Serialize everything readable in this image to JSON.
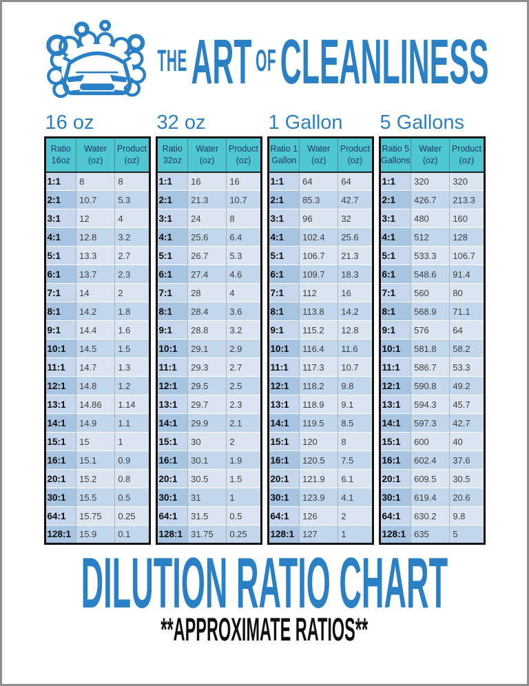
{
  "brand": {
    "word_the": "THE",
    "word_art": "ART",
    "word_of": "OF",
    "word_cleanliness": "CLEANLINESS",
    "logo": "car-wash-bubbles-logo"
  },
  "footer": {
    "title": "DILUTION RATIO CHART",
    "subtitle": "**APPROXIMATE RATIOS**"
  },
  "colors": {
    "brand_blue": "#2980C4",
    "header_teal": "#4FC7D2",
    "table_border": "#141414",
    "row_odd_ratio": "#C6D6EC",
    "row_odd_value": "#DBE5F2",
    "row_even_ratio": "#A7C4E3",
    "row_even_value": "#C2D6EC"
  },
  "tables": [
    {
      "section_label": "16 oz",
      "headers": [
        "Ratio\n16oz",
        "Water\n(oz)",
        "Product\n(oz)"
      ],
      "rows": [
        [
          "1:1",
          "8",
          "8"
        ],
        [
          "2:1",
          "10.7",
          "5.3"
        ],
        [
          "3:1",
          "12",
          "4"
        ],
        [
          "4:1",
          "12.8",
          "3.2"
        ],
        [
          "5:1",
          "13.3",
          "2.7"
        ],
        [
          "6:1",
          "13.7",
          "2.3"
        ],
        [
          "7:1",
          "14",
          "2"
        ],
        [
          "8:1",
          "14.2",
          "1.8"
        ],
        [
          "9:1",
          "14.4",
          "1.6"
        ],
        [
          "10:1",
          "14.5",
          "1.5"
        ],
        [
          "11:1",
          "14.7",
          "1.3"
        ],
        [
          "12:1",
          "14.8",
          "1.2"
        ],
        [
          "13:1",
          "14.86",
          "1.14"
        ],
        [
          "14:1",
          "14.9",
          "1.1"
        ],
        [
          "15:1",
          "15",
          "1"
        ],
        [
          "16:1",
          "15.1",
          "0.9"
        ],
        [
          "20:1",
          "15.2",
          "0.8"
        ],
        [
          "30:1",
          "15.5",
          "0.5"
        ],
        [
          "64:1",
          "15.75",
          "0.25"
        ],
        [
          "128:1",
          "15.9",
          "0.1"
        ]
      ]
    },
    {
      "section_label": "32 oz",
      "headers": [
        "Ratio\n32oz",
        "Water\n(oz)",
        "Product\n(oz)"
      ],
      "rows": [
        [
          "1:1",
          "16",
          "16"
        ],
        [
          "2:1",
          "21.3",
          "10.7"
        ],
        [
          "3:1",
          "24",
          "8"
        ],
        [
          "4:1",
          "25.6",
          "6.4"
        ],
        [
          "5:1",
          "26.7",
          "5.3"
        ],
        [
          "6:1",
          "27.4",
          "4.6"
        ],
        [
          "7:1",
          "28",
          "4"
        ],
        [
          "8:1",
          "28.4",
          "3.6"
        ],
        [
          "9:1",
          "28.8",
          "3.2"
        ],
        [
          "10:1",
          "29.1",
          "2.9"
        ],
        [
          "11:1",
          "29.3",
          "2.7"
        ],
        [
          "12:1",
          "29.5",
          "2.5"
        ],
        [
          "13:1",
          "29.7",
          "2.3"
        ],
        [
          "14:1",
          "29.9",
          "2.1"
        ],
        [
          "15:1",
          "30",
          "2"
        ],
        [
          "16:1",
          "30.1",
          "1.9"
        ],
        [
          "20:1",
          "30.5",
          "1.5"
        ],
        [
          "30:1",
          "31",
          "1"
        ],
        [
          "64:1",
          "31.5",
          "0.5"
        ],
        [
          "128:1",
          "31.75",
          "0.25"
        ]
      ]
    },
    {
      "section_label": "1 Gallon",
      "headers": [
        "Ratio 1\nGallon",
        "Water\n(oz)",
        "Product\n(oz)"
      ],
      "rows": [
        [
          "1:1",
          "64",
          "64"
        ],
        [
          "2:1",
          "85.3",
          "42.7"
        ],
        [
          "3:1",
          "96",
          "32"
        ],
        [
          "4:1",
          "102.4",
          "25.6"
        ],
        [
          "5:1",
          "106.7",
          "21.3"
        ],
        [
          "6:1",
          "109.7",
          "18.3"
        ],
        [
          "7:1",
          "112",
          "16"
        ],
        [
          "8:1",
          "113.8",
          "14.2"
        ],
        [
          "9:1",
          "115.2",
          "12.8"
        ],
        [
          "10:1",
          "116.4",
          "11.6"
        ],
        [
          "11:1",
          "117.3",
          "10.7"
        ],
        [
          "12:1",
          "118.2",
          "9.8"
        ],
        [
          "13:1",
          "118.9",
          "9.1"
        ],
        [
          "14:1",
          "119.5",
          "8.5"
        ],
        [
          "15:1",
          "120",
          "8"
        ],
        [
          "16:1",
          "120.5",
          "7.5"
        ],
        [
          "20:1",
          "121.9",
          "6.1"
        ],
        [
          "30:1",
          "123.9",
          "4.1"
        ],
        [
          "64:1",
          "126",
          "2"
        ],
        [
          "128:1",
          "127",
          "1"
        ]
      ]
    },
    {
      "section_label": "5 Gallons",
      "headers": [
        "Ratio 5\nGallons",
        "Water\n(oz)",
        "Product\n(oz)"
      ],
      "rows": [
        [
          "1:1",
          "320",
          "320"
        ],
        [
          "2:1",
          "426.7",
          "213.3"
        ],
        [
          "3:1",
          "480",
          "160"
        ],
        [
          "4:1",
          "512",
          "128"
        ],
        [
          "5:1",
          "533.3",
          "106.7"
        ],
        [
          "6:1",
          "548.6",
          "91.4"
        ],
        [
          "7:1",
          "560",
          "80"
        ],
        [
          "8:1",
          "568.9",
          "71.1"
        ],
        [
          "9:1",
          "576",
          "64"
        ],
        [
          "10:1",
          "581.8",
          "58.2"
        ],
        [
          "11:1",
          "586.7",
          "53.3"
        ],
        [
          "12:1",
          "590.8",
          "49.2"
        ],
        [
          "13:1",
          "594.3",
          "45.7"
        ],
        [
          "14:1",
          "597.3",
          "42.7"
        ],
        [
          "15:1",
          "600",
          "40"
        ],
        [
          "16:1",
          "602.4",
          "37.6"
        ],
        [
          "20:1",
          "609.5",
          "30.5"
        ],
        [
          "30:1",
          "619.4",
          "20.6"
        ],
        [
          "64:1",
          "630.2",
          "9.8"
        ],
        [
          "128:1",
          "635",
          "5"
        ]
      ]
    }
  ]
}
